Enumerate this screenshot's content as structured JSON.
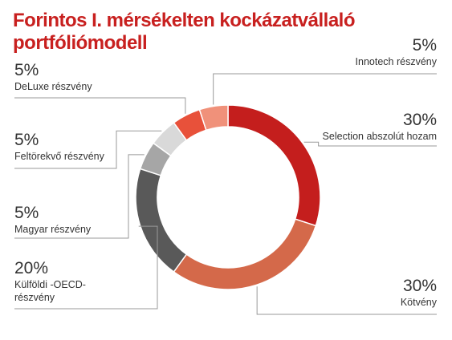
{
  "chart_data": {
    "type": "pie",
    "variant": "donut",
    "title_lines": [
      "Forintos I. mérsékelten kockázatvállaló",
      "portfóliómodell"
    ],
    "slices": [
      {
        "label": "Selection abszolút hozam",
        "value": 30,
        "pct_text": "30%",
        "color": "#c41e1d"
      },
      {
        "label": "Kötvény",
        "value": 30,
        "pct_text": "30%",
        "color": "#d4694a"
      },
      {
        "label": "Külföldi -OECD- részvény",
        "label_lines": [
          "Külföldi -OECD-",
          "részvény"
        ],
        "value": 20,
        "pct_text": "20%",
        "color": "#595959"
      },
      {
        "label": "Magyar részvény",
        "value": 5,
        "pct_text": "5%",
        "color": "#a6a6a6"
      },
      {
        "label": "Feltörekvő részvény",
        "value": 5,
        "pct_text": "5%",
        "color": "#d9d9d9"
      },
      {
        "label": "DeLuxe részvény",
        "value": 5,
        "pct_text": "5%",
        "color": "#e8513a"
      },
      {
        "label": "Innotech részvény",
        "value": 5,
        "pct_text": "5%",
        "color": "#f0917a"
      }
    ],
    "legend": "none",
    "leader_color": "#999999"
  }
}
